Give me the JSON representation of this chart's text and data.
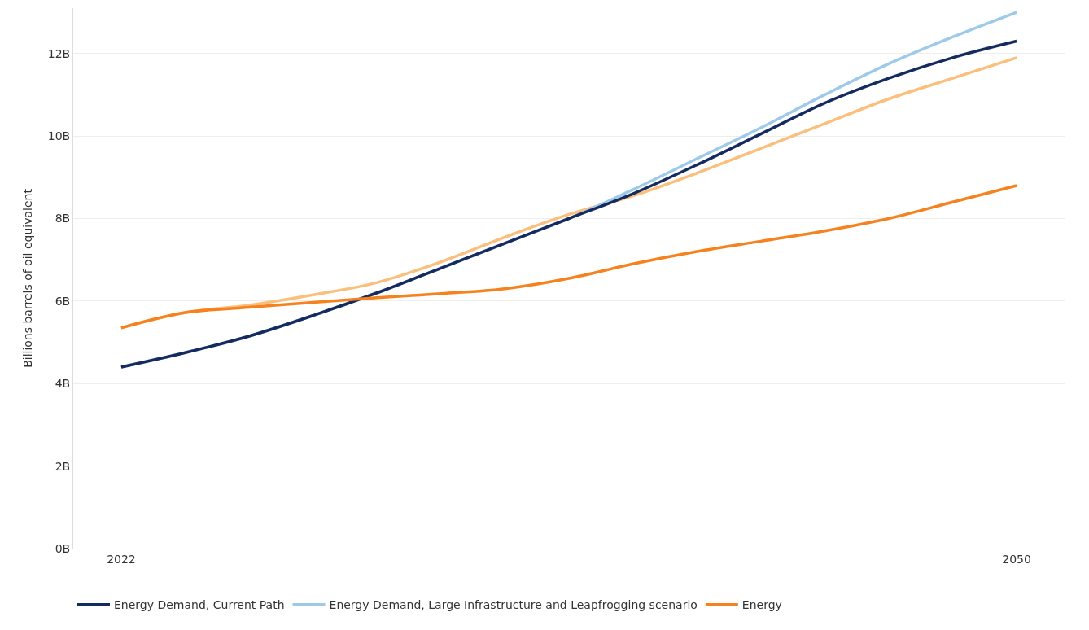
{
  "chart_data": {
    "type": "line",
    "ylabel": "Billions barrels of oil equivalent",
    "x": [
      2022,
      2024,
      2026,
      2028,
      2030,
      2032,
      2034,
      2036,
      2038,
      2040,
      2042,
      2044,
      2046,
      2048,
      2050
    ],
    "series": [
      {
        "color": "#fbbf7c",
        "values": [
          5.35,
          5.72,
          5.9,
          6.15,
          6.45,
          6.95,
          7.55,
          8.1,
          8.55,
          9.1,
          9.7,
          10.3,
          10.9,
          11.4,
          11.9
        ]
      },
      {
        "name": "Energy Demand, Large Infrastructure and Leapfrogging scenario",
        "color": "#9ecae9",
        "values": [
          4.4,
          4.75,
          5.15,
          5.65,
          6.2,
          6.8,
          7.4,
          8.0,
          8.7,
          9.45,
          10.2,
          11.0,
          11.75,
          12.4,
          13.0
        ]
      },
      {
        "name": "Energy Demand, Current Path",
        "color": "#152a5e",
        "values": [
          4.4,
          4.75,
          5.15,
          5.65,
          6.2,
          6.8,
          7.4,
          8.0,
          8.6,
          9.3,
          10.05,
          10.8,
          11.4,
          11.9,
          12.3
        ]
      },
      {
        "name": "Energy",
        "color": "#f5821f",
        "values": [
          5.35,
          5.72,
          5.85,
          5.97,
          6.08,
          6.18,
          6.3,
          6.55,
          6.9,
          7.2,
          7.45,
          7.7,
          8.0,
          8.4,
          8.8
        ]
      }
    ],
    "xlim": [
      2020.5,
      2051.5
    ],
    "xticks": [
      2022,
      2050
    ],
    "ylim": [
      0,
      13.1
    ],
    "yticks": [
      {
        "value": 0,
        "label": "0B"
      },
      {
        "value": 2,
        "label": "2B"
      },
      {
        "value": 4,
        "label": "4B"
      },
      {
        "value": 6,
        "label": "6B"
      },
      {
        "value": 8,
        "label": "8B"
      },
      {
        "value": 10,
        "label": "10B"
      },
      {
        "value": 12,
        "label": "12B"
      }
    ],
    "grid": "y",
    "legend": "bottom",
    "marker": "none",
    "line_style": "solid"
  }
}
